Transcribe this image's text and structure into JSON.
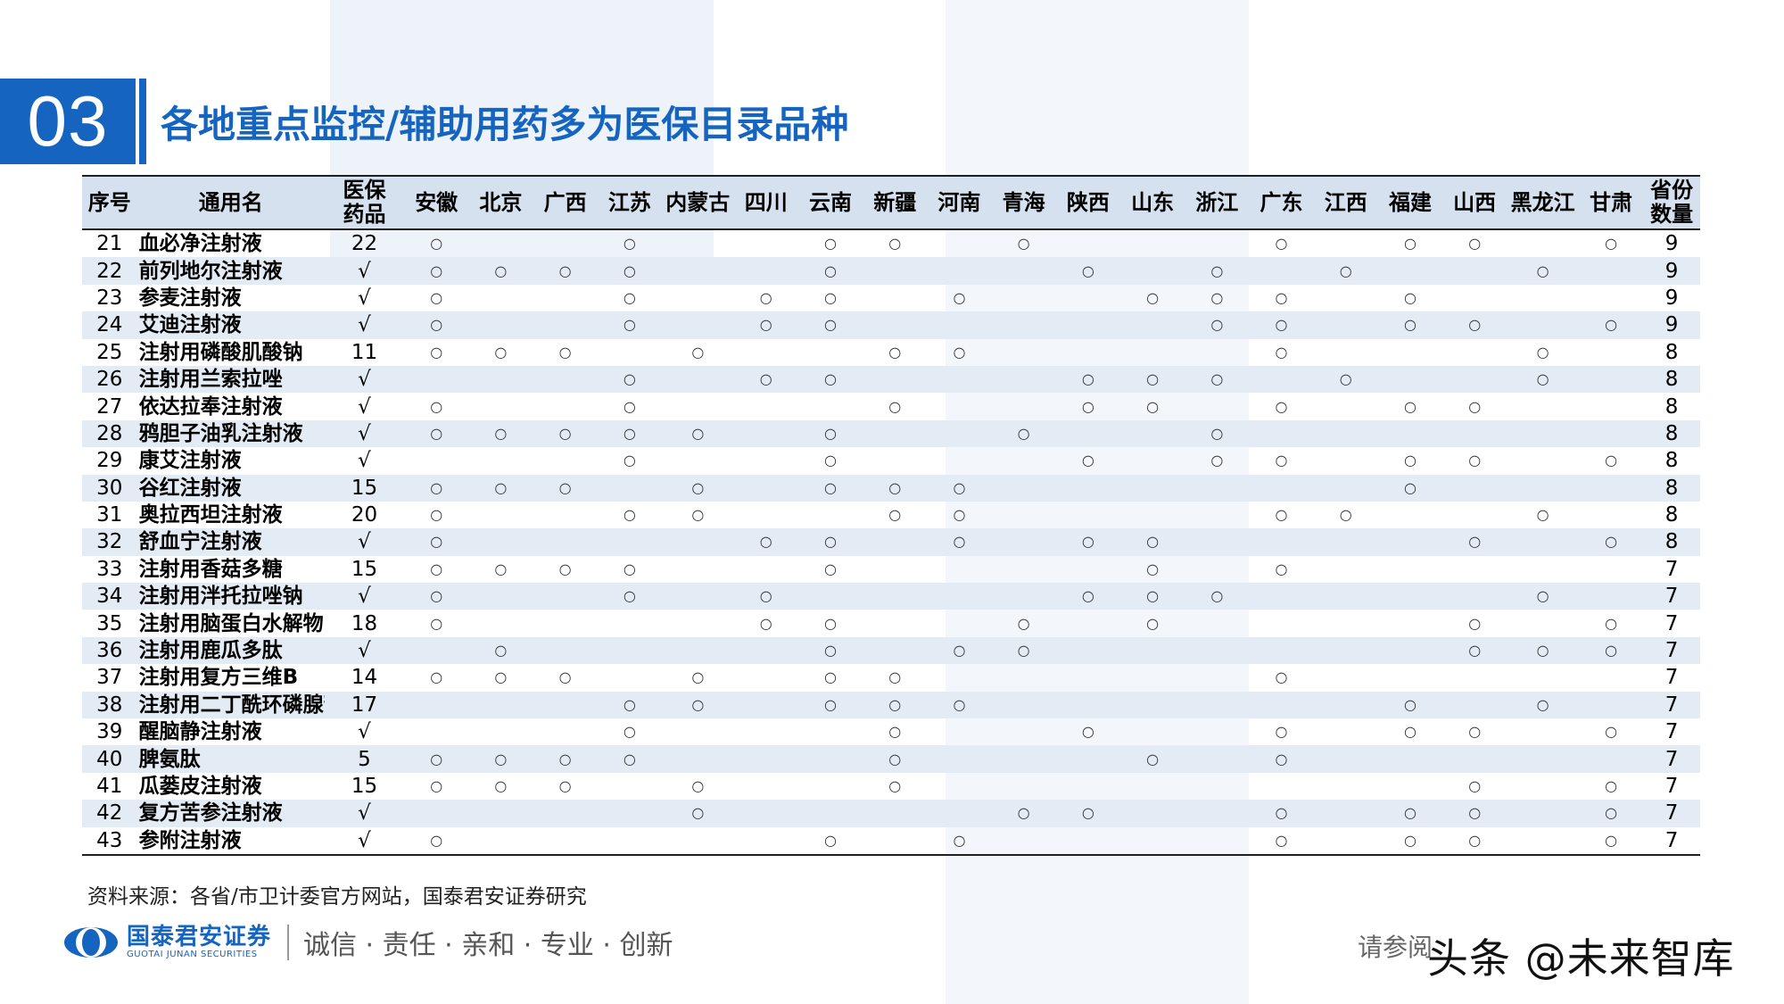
{
  "section": {
    "number": "03"
  },
  "title": "各地重点监控/辅助用药多为医保目录品种",
  "table": {
    "headers": {
      "seq": "序号",
      "name": "通用名",
      "insurance_l1": "医保",
      "insurance_l2": "药品",
      "provinces": [
        "安徽",
        "北京",
        "广西",
        "江苏",
        "内蒙古",
        "四川",
        "云南",
        "新疆",
        "河南",
        "青海",
        "陕西",
        "山东",
        "浙江",
        "广东",
        "江西",
        "福建",
        "山西",
        "黑龙江",
        "甘肃"
      ],
      "count_l1": "省份",
      "count_l2": "数量"
    },
    "mark_symbol": "○",
    "rows": [
      {
        "seq": "21",
        "name": "血必净注射液",
        "insurance": "22",
        "marks": [
          1,
          0,
          0,
          1,
          0,
          0,
          1,
          1,
          0,
          1,
          0,
          0,
          0,
          1,
          0,
          1,
          1,
          0,
          1
        ],
        "count": "9"
      },
      {
        "seq": "22",
        "name": "前列地尔注射液",
        "insurance": "√",
        "marks": [
          1,
          1,
          1,
          1,
          0,
          0,
          1,
          0,
          0,
          0,
          1,
          0,
          1,
          0,
          1,
          0,
          0,
          1,
          0
        ],
        "count": "9"
      },
      {
        "seq": "23",
        "name": "参麦注射液",
        "insurance": "√",
        "marks": [
          1,
          0,
          0,
          1,
          0,
          1,
          1,
          0,
          1,
          0,
          0,
          1,
          1,
          1,
          0,
          1,
          0,
          0,
          0
        ],
        "count": "9"
      },
      {
        "seq": "24",
        "name": "艾迪注射液",
        "insurance": "√",
        "marks": [
          1,
          0,
          0,
          1,
          0,
          1,
          1,
          0,
          0,
          0,
          0,
          0,
          1,
          1,
          0,
          1,
          1,
          0,
          1
        ],
        "count": "9"
      },
      {
        "seq": "25",
        "name": "注射用磷酸肌酸钠",
        "insurance": "11",
        "marks": [
          1,
          1,
          1,
          0,
          1,
          0,
          0,
          1,
          1,
          0,
          0,
          0,
          0,
          1,
          0,
          0,
          0,
          1,
          0
        ],
        "count": "8"
      },
      {
        "seq": "26",
        "name": "注射用兰索拉唑",
        "insurance": "√",
        "marks": [
          0,
          0,
          0,
          1,
          0,
          1,
          1,
          0,
          0,
          0,
          1,
          1,
          1,
          0,
          1,
          0,
          0,
          1,
          0
        ],
        "count": "8"
      },
      {
        "seq": "27",
        "name": "依达拉奉注射液",
        "insurance": "√",
        "marks": [
          1,
          0,
          0,
          1,
          0,
          0,
          0,
          1,
          0,
          0,
          1,
          1,
          0,
          1,
          0,
          1,
          1,
          0,
          0
        ],
        "count": "8"
      },
      {
        "seq": "28",
        "name": "鸦胆子油乳注射液",
        "insurance": "√",
        "marks": [
          1,
          1,
          1,
          1,
          1,
          0,
          1,
          0,
          0,
          1,
          0,
          0,
          1,
          0,
          0,
          0,
          0,
          0,
          0
        ],
        "count": "8"
      },
      {
        "seq": "29",
        "name": "康艾注射液",
        "insurance": "√",
        "marks": [
          0,
          0,
          0,
          1,
          0,
          0,
          1,
          0,
          0,
          0,
          1,
          0,
          1,
          1,
          0,
          1,
          1,
          0,
          1
        ],
        "count": "8"
      },
      {
        "seq": "30",
        "name": "谷红注射液",
        "insurance": "15",
        "marks": [
          1,
          1,
          1,
          0,
          1,
          0,
          1,
          1,
          1,
          0,
          0,
          0,
          0,
          0,
          0,
          1,
          0,
          0,
          0
        ],
        "count": "8"
      },
      {
        "seq": "31",
        "name": "奥拉西坦注射液",
        "insurance": "20",
        "marks": [
          1,
          0,
          0,
          1,
          1,
          0,
          0,
          1,
          1,
          0,
          0,
          0,
          0,
          1,
          1,
          0,
          0,
          1,
          0
        ],
        "count": "8"
      },
      {
        "seq": "32",
        "name": "舒血宁注射液",
        "insurance": "√",
        "marks": [
          1,
          0,
          0,
          0,
          0,
          1,
          1,
          0,
          1,
          0,
          1,
          1,
          0,
          0,
          0,
          0,
          1,
          0,
          1
        ],
        "count": "8"
      },
      {
        "seq": "33",
        "name": "注射用香菇多糖",
        "insurance": "15",
        "marks": [
          1,
          1,
          1,
          1,
          0,
          0,
          1,
          0,
          0,
          0,
          0,
          1,
          0,
          1,
          0,
          0,
          0,
          0,
          0
        ],
        "count": "7"
      },
      {
        "seq": "34",
        "name": "注射用泮托拉唑钠",
        "insurance": "√",
        "marks": [
          1,
          0,
          0,
          1,
          0,
          1,
          0,
          0,
          0,
          0,
          1,
          1,
          1,
          0,
          0,
          0,
          0,
          1,
          0
        ],
        "count": "7"
      },
      {
        "seq": "35",
        "name": "注射用脑蛋白水解物",
        "insurance": "18",
        "marks": [
          1,
          0,
          0,
          0,
          0,
          1,
          1,
          0,
          0,
          1,
          0,
          1,
          0,
          0,
          0,
          0,
          1,
          0,
          1
        ],
        "count": "7"
      },
      {
        "seq": "36",
        "name": "注射用鹿瓜多肽",
        "insurance": "√",
        "marks": [
          0,
          1,
          0,
          0,
          0,
          0,
          1,
          0,
          1,
          1,
          0,
          0,
          0,
          0,
          0,
          0,
          1,
          1,
          1
        ],
        "count": "7"
      },
      {
        "seq": "37",
        "name": "注射用复方三维B",
        "insurance": "14",
        "marks": [
          1,
          1,
          1,
          0,
          1,
          0,
          1,
          1,
          0,
          0,
          0,
          0,
          0,
          1,
          0,
          0,
          0,
          0,
          0
        ],
        "count": "7"
      },
      {
        "seq": "38",
        "name": "注射用二丁酰环磷腺苷钙",
        "insurance": "17",
        "marks": [
          0,
          0,
          0,
          1,
          1,
          0,
          1,
          1,
          1,
          0,
          0,
          0,
          0,
          0,
          0,
          1,
          0,
          1,
          0
        ],
        "count": "7"
      },
      {
        "seq": "39",
        "name": "醒脑静注射液",
        "insurance": "√",
        "marks": [
          0,
          0,
          0,
          1,
          0,
          0,
          0,
          1,
          0,
          0,
          1,
          0,
          0,
          1,
          0,
          1,
          1,
          0,
          1
        ],
        "count": "7"
      },
      {
        "seq": "40",
        "name": "脾氨肽",
        "insurance": "5",
        "marks": [
          1,
          1,
          1,
          1,
          0,
          0,
          0,
          1,
          0,
          0,
          0,
          1,
          0,
          1,
          0,
          0,
          0,
          0,
          0
        ],
        "count": "7"
      },
      {
        "seq": "41",
        "name": "瓜蒌皮注射液",
        "insurance": "15",
        "marks": [
          1,
          1,
          1,
          0,
          1,
          0,
          0,
          1,
          0,
          0,
          0,
          0,
          0,
          0,
          0,
          0,
          1,
          0,
          1
        ],
        "count": "7"
      },
      {
        "seq": "42",
        "name": "复方苦参注射液",
        "insurance": "√",
        "marks": [
          0,
          0,
          0,
          0,
          1,
          0,
          0,
          0,
          0,
          1,
          1,
          0,
          0,
          1,
          0,
          1,
          1,
          0,
          1
        ],
        "count": "7"
      },
      {
        "seq": "43",
        "name": "参附注射液",
        "insurance": "√",
        "marks": [
          1,
          0,
          0,
          0,
          0,
          0,
          1,
          0,
          1,
          0,
          0,
          0,
          0,
          1,
          0,
          1,
          1,
          0,
          1
        ],
        "count": "7"
      }
    ]
  },
  "source": "资料来源：各省/市卫计委官方网站，国泰君安证券研究",
  "footer": {
    "logo_cn": "国泰君安证券",
    "logo_en": "GUOTAI JUNAN SECURITIES",
    "slogan": "诚信 · 责任 · 亲和 · 专业 · 创新",
    "disclaimer": "请参阅",
    "watermark": "头条 @未来智库"
  },
  "colors": {
    "brand": "#1565c0",
    "header_bg": "#d6e1ef",
    "stripe_bg": "#e3ebf5"
  }
}
